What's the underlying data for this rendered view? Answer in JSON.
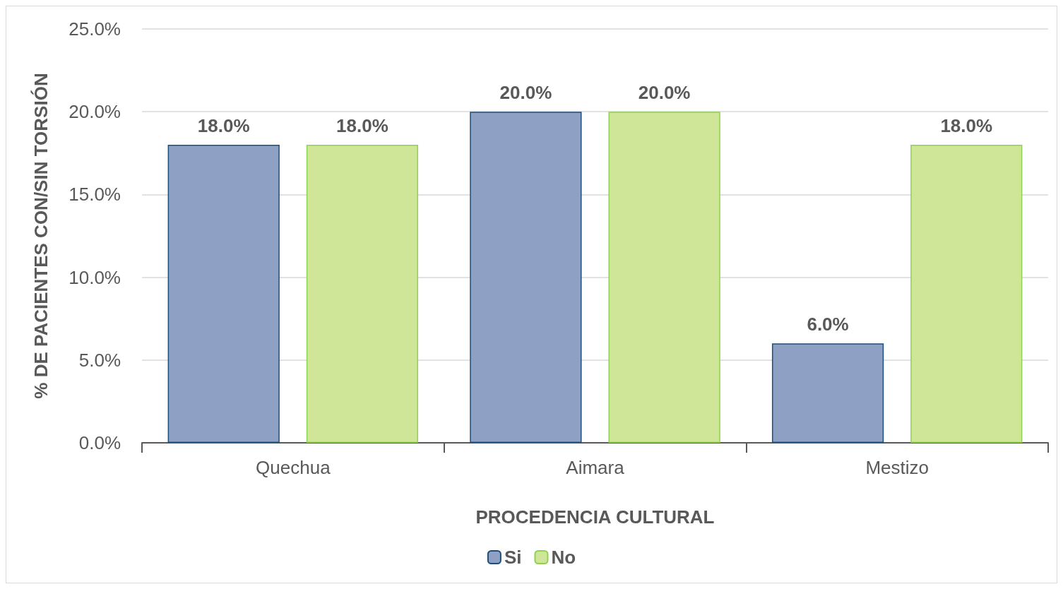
{
  "chart_data": {
    "type": "bar",
    "xlabel": "PROCEDENCIA CULTURAL",
    "ylabel": "% DE PACIENTES CON/SIN TORSIÓN",
    "categories": [
      "Quechua",
      "Aimara",
      "Mestizo"
    ],
    "series": [
      {
        "name": "Si",
        "color": "#8ea1c5",
        "values": [
          18,
          20,
          6
        ],
        "value_labels": [
          "18.0%",
          "20.0%",
          "6.0%"
        ]
      },
      {
        "name": "No",
        "color": "#cfe597",
        "values": [
          18,
          20,
          18
        ],
        "value_labels": [
          "18.0%",
          "20.0%",
          "18.0%"
        ]
      }
    ],
    "ylim": [
      0,
      25
    ],
    "yticks": [
      {
        "value": 0,
        "label": "0.0%"
      },
      {
        "value": 5,
        "label": "5.0%"
      },
      {
        "value": 10,
        "label": "10.0%"
      },
      {
        "value": 15,
        "label": "15.0%"
      },
      {
        "value": 20,
        "label": "20.0%"
      },
      {
        "value": 25,
        "label": "25.0%"
      }
    ],
    "grid": "y",
    "legend": "bottom"
  }
}
